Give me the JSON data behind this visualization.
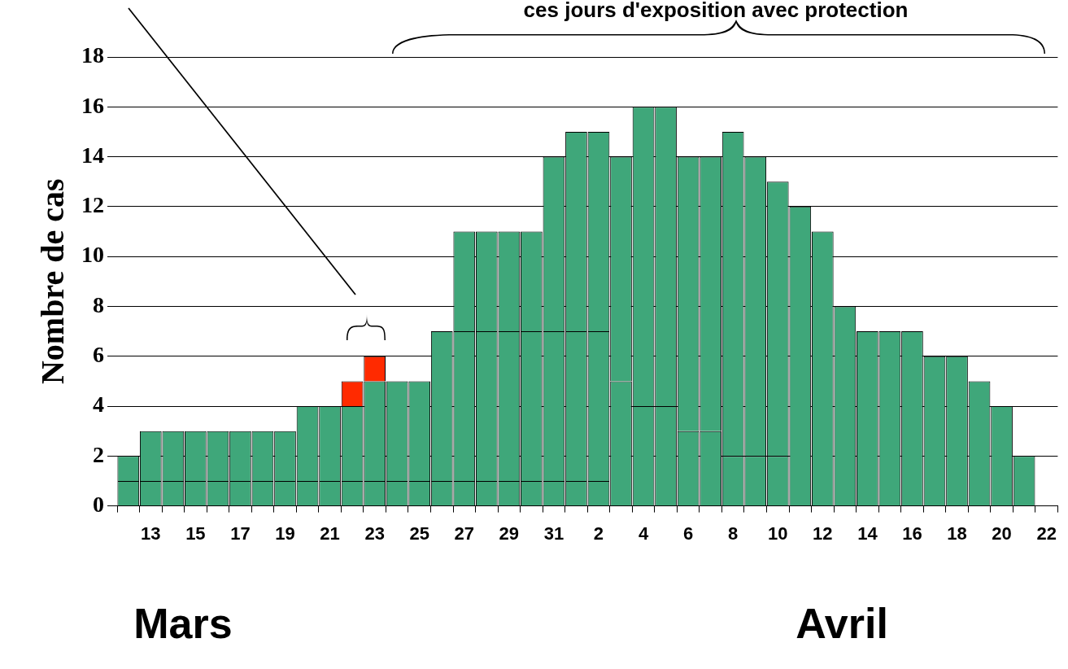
{
  "chart_data": {
    "type": "bar",
    "stacked": true,
    "ylabel": "Nombre de cas",
    "categories": [
      null,
      "13",
      null,
      "15",
      null,
      "17",
      null,
      "19",
      null,
      "21",
      null,
      "23",
      null,
      "25",
      null,
      "27",
      null,
      "29",
      null,
      "31",
      null,
      "2",
      null,
      "4",
      null,
      "6",
      null,
      "8",
      null,
      "10",
      null,
      "12",
      null,
      "14",
      null,
      "16",
      null,
      "18",
      null,
      "20",
      null,
      "22"
    ],
    "series": [
      {
        "color": "#3fa77a",
        "values": [
          1,
          1,
          1,
          1,
          1,
          1,
          1,
          1,
          1,
          1,
          1,
          1,
          1,
          1,
          1,
          1,
          1,
          1,
          1,
          1,
          1,
          1,
          5,
          4,
          4,
          3,
          3,
          2,
          2,
          2,
          12,
          11,
          8,
          7,
          7,
          7,
          6,
          6,
          5,
          4,
          2,
          null
        ]
      },
      {
        "color": "#3fa77a",
        "values": [
          1,
          2,
          2,
          2,
          2,
          2,
          2,
          2,
          3,
          3,
          3,
          4,
          4,
          4,
          6,
          6,
          6,
          6,
          6,
          6,
          6,
          6,
          9,
          12,
          12,
          11,
          11,
          13,
          12,
          11,
          null,
          null,
          null,
          null,
          null,
          null,
          null,
          null,
          null,
          null,
          null,
          null
        ]
      },
      {
        "color": "#3fa77a",
        "values": [
          null,
          null,
          null,
          null,
          null,
          null,
          null,
          null,
          null,
          null,
          null,
          null,
          null,
          null,
          null,
          4,
          4,
          4,
          4,
          7,
          8,
          8,
          null,
          null,
          null,
          null,
          null,
          null,
          null,
          null,
          null,
          null,
          null,
          null,
          null,
          null,
          null,
          null,
          null,
          null,
          null,
          null
        ]
      },
      {
        "color": "#ff2a00",
        "values": [
          null,
          null,
          null,
          null,
          null,
          null,
          null,
          null,
          null,
          null,
          1,
          1,
          null,
          null,
          null,
          null,
          null,
          null,
          null,
          null,
          null,
          null,
          null,
          null,
          null,
          null,
          null,
          null,
          null,
          null,
          null,
          null,
          null,
          null,
          null,
          null,
          null,
          null,
          null,
          null,
          null,
          null
        ]
      }
    ],
    "ylim": [
      0,
      18
    ],
    "yticks": [
      0,
      2,
      4,
      6,
      8,
      10,
      12,
      14,
      16,
      18
    ],
    "grid": "y",
    "legend": false,
    "annotations": [
      "ces jours d'exposition avec protection",
      "Mars",
      "Avril"
    ]
  }
}
